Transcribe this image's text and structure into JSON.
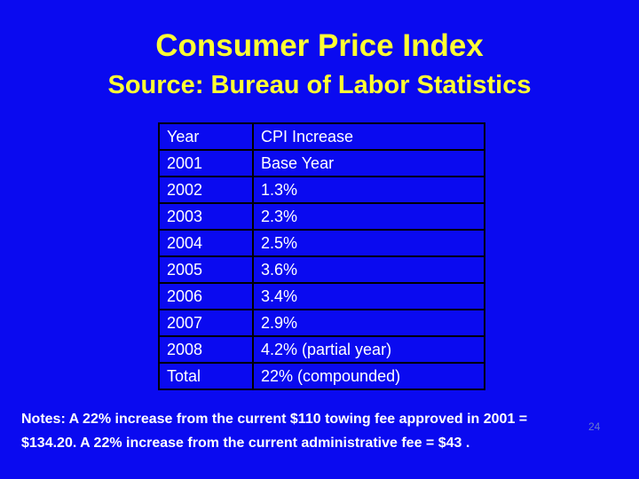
{
  "header": {
    "title": "Consumer Price Index",
    "subtitle": "Source: Bureau of Labor Statistics"
  },
  "table": {
    "columns": [
      "Year",
      "CPI Increase"
    ],
    "rows": [
      [
        "2001",
        "Base Year"
      ],
      [
        "2002",
        "1.3%"
      ],
      [
        "2003",
        "2.3%"
      ],
      [
        "2004",
        "2.5%"
      ],
      [
        "2005",
        "3.6%"
      ],
      [
        "2006",
        "3.4%"
      ],
      [
        "2007",
        "2.9%"
      ],
      [
        "2008",
        "4.2% (partial year)"
      ],
      [
        "Total",
        "22% (compounded)"
      ]
    ]
  },
  "notes": [
    "Notes: A 22% increase from the current $110 towing fee approved in 2001 =",
    "$134.20.  A 22% increase from the current administrative fee = $43 ."
  ],
  "page_number": "24"
}
